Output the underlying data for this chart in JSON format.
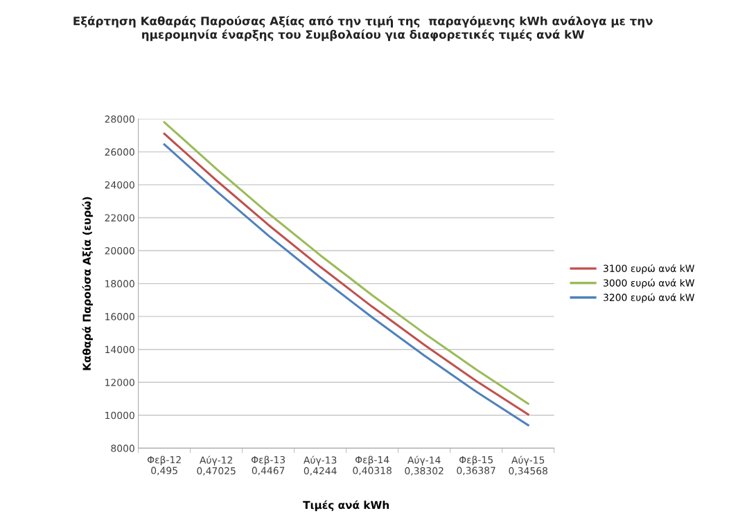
{
  "chart_data": {
    "type": "line",
    "title": "Εξάρτηση Καθαράς Παρούσας Αξίας από την τιμή της  παραγόμενης kWh ανάλογα με την\nημερομηνία έναρξης του Συμβολαίου για διαφορετικές τιμές ανά kW",
    "xlabel": "Τιμές ανά kWh",
    "ylabel": "Καθαρά Παρούσα Αξία (ευρώ)",
    "categories": [
      "Φεβ-12\n0,495",
      "Αύγ-12\n0,47025",
      "Φεβ-13\n0,4467",
      "Αύγ-13\n0,4244",
      "Φεβ-14\n0,40318",
      "Αύγ-14\n0,38302",
      "Φεβ-15\n0,36387",
      "Αύγ-15\n0,34568"
    ],
    "series": [
      {
        "name": "3100 ευρώ ανά kW",
        "color": "#c0504d",
        "values": [
          27100,
          24270,
          21570,
          19020,
          16590,
          14280,
          12080,
          10050
        ]
      },
      {
        "name": "3000 ευρώ ανά kW",
        "color": "#9bbb59",
        "values": [
          27800,
          24970,
          22270,
          19720,
          17290,
          14980,
          12780,
          10700
        ]
      },
      {
        "name": "3200 ευρώ ανά kW",
        "color": "#4f81bd",
        "values": [
          26450,
          23620,
          20920,
          18370,
          15940,
          13630,
          11430,
          9400
        ]
      }
    ],
    "ylim": [
      8000,
      28000
    ],
    "yticks": [
      8000,
      10000,
      12000,
      14000,
      16000,
      18000,
      20000,
      22000,
      24000,
      26000,
      28000
    ],
    "grid": "y",
    "legend": "right",
    "marker": "none",
    "line_style": "solid"
  }
}
